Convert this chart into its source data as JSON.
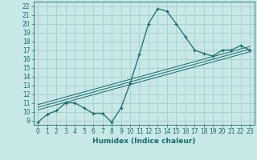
{
  "title": "",
  "xlabel": "Humidex (Indice chaleur)",
  "ylabel": "",
  "bg_color": "#c8e8e8",
  "line_color": "#1a6b6b",
  "grid_color": "#a8cccc",
  "x_data": [
    0,
    1,
    2,
    3,
    4,
    5,
    6,
    7,
    8,
    9,
    10,
    11,
    12,
    13,
    14,
    15,
    16,
    17,
    18,
    19,
    20,
    21,
    22,
    23
  ],
  "y_data": [
    8.8,
    9.7,
    10.1,
    11.0,
    11.0,
    10.4,
    9.8,
    9.8,
    8.8,
    10.4,
    13.2,
    16.5,
    20.0,
    21.7,
    21.4,
    20.0,
    18.5,
    17.0,
    16.6,
    16.3,
    17.0,
    17.0,
    17.5,
    17.0
  ],
  "reg_lines": [
    {
      "x": [
        0,
        23
      ],
      "y": [
        10.2,
        16.8
      ]
    },
    {
      "x": [
        0,
        23
      ],
      "y": [
        10.5,
        17.1
      ]
    },
    {
      "x": [
        0,
        23
      ],
      "y": [
        10.8,
        17.4
      ]
    }
  ],
  "ylim": [
    8.5,
    22.5
  ],
  "xlim": [
    -0.5,
    23.5
  ],
  "yticks": [
    9,
    10,
    11,
    12,
    13,
    14,
    15,
    16,
    17,
    18,
    19,
    20,
    21,
    22
  ],
  "xticks": [
    0,
    1,
    2,
    3,
    4,
    5,
    6,
    7,
    8,
    9,
    10,
    11,
    12,
    13,
    14,
    15,
    16,
    17,
    18,
    19,
    20,
    21,
    22,
    23
  ],
  "font_color": "#1a6b6b",
  "tick_fontsize": 5.5,
  "label_fontsize": 6.5
}
